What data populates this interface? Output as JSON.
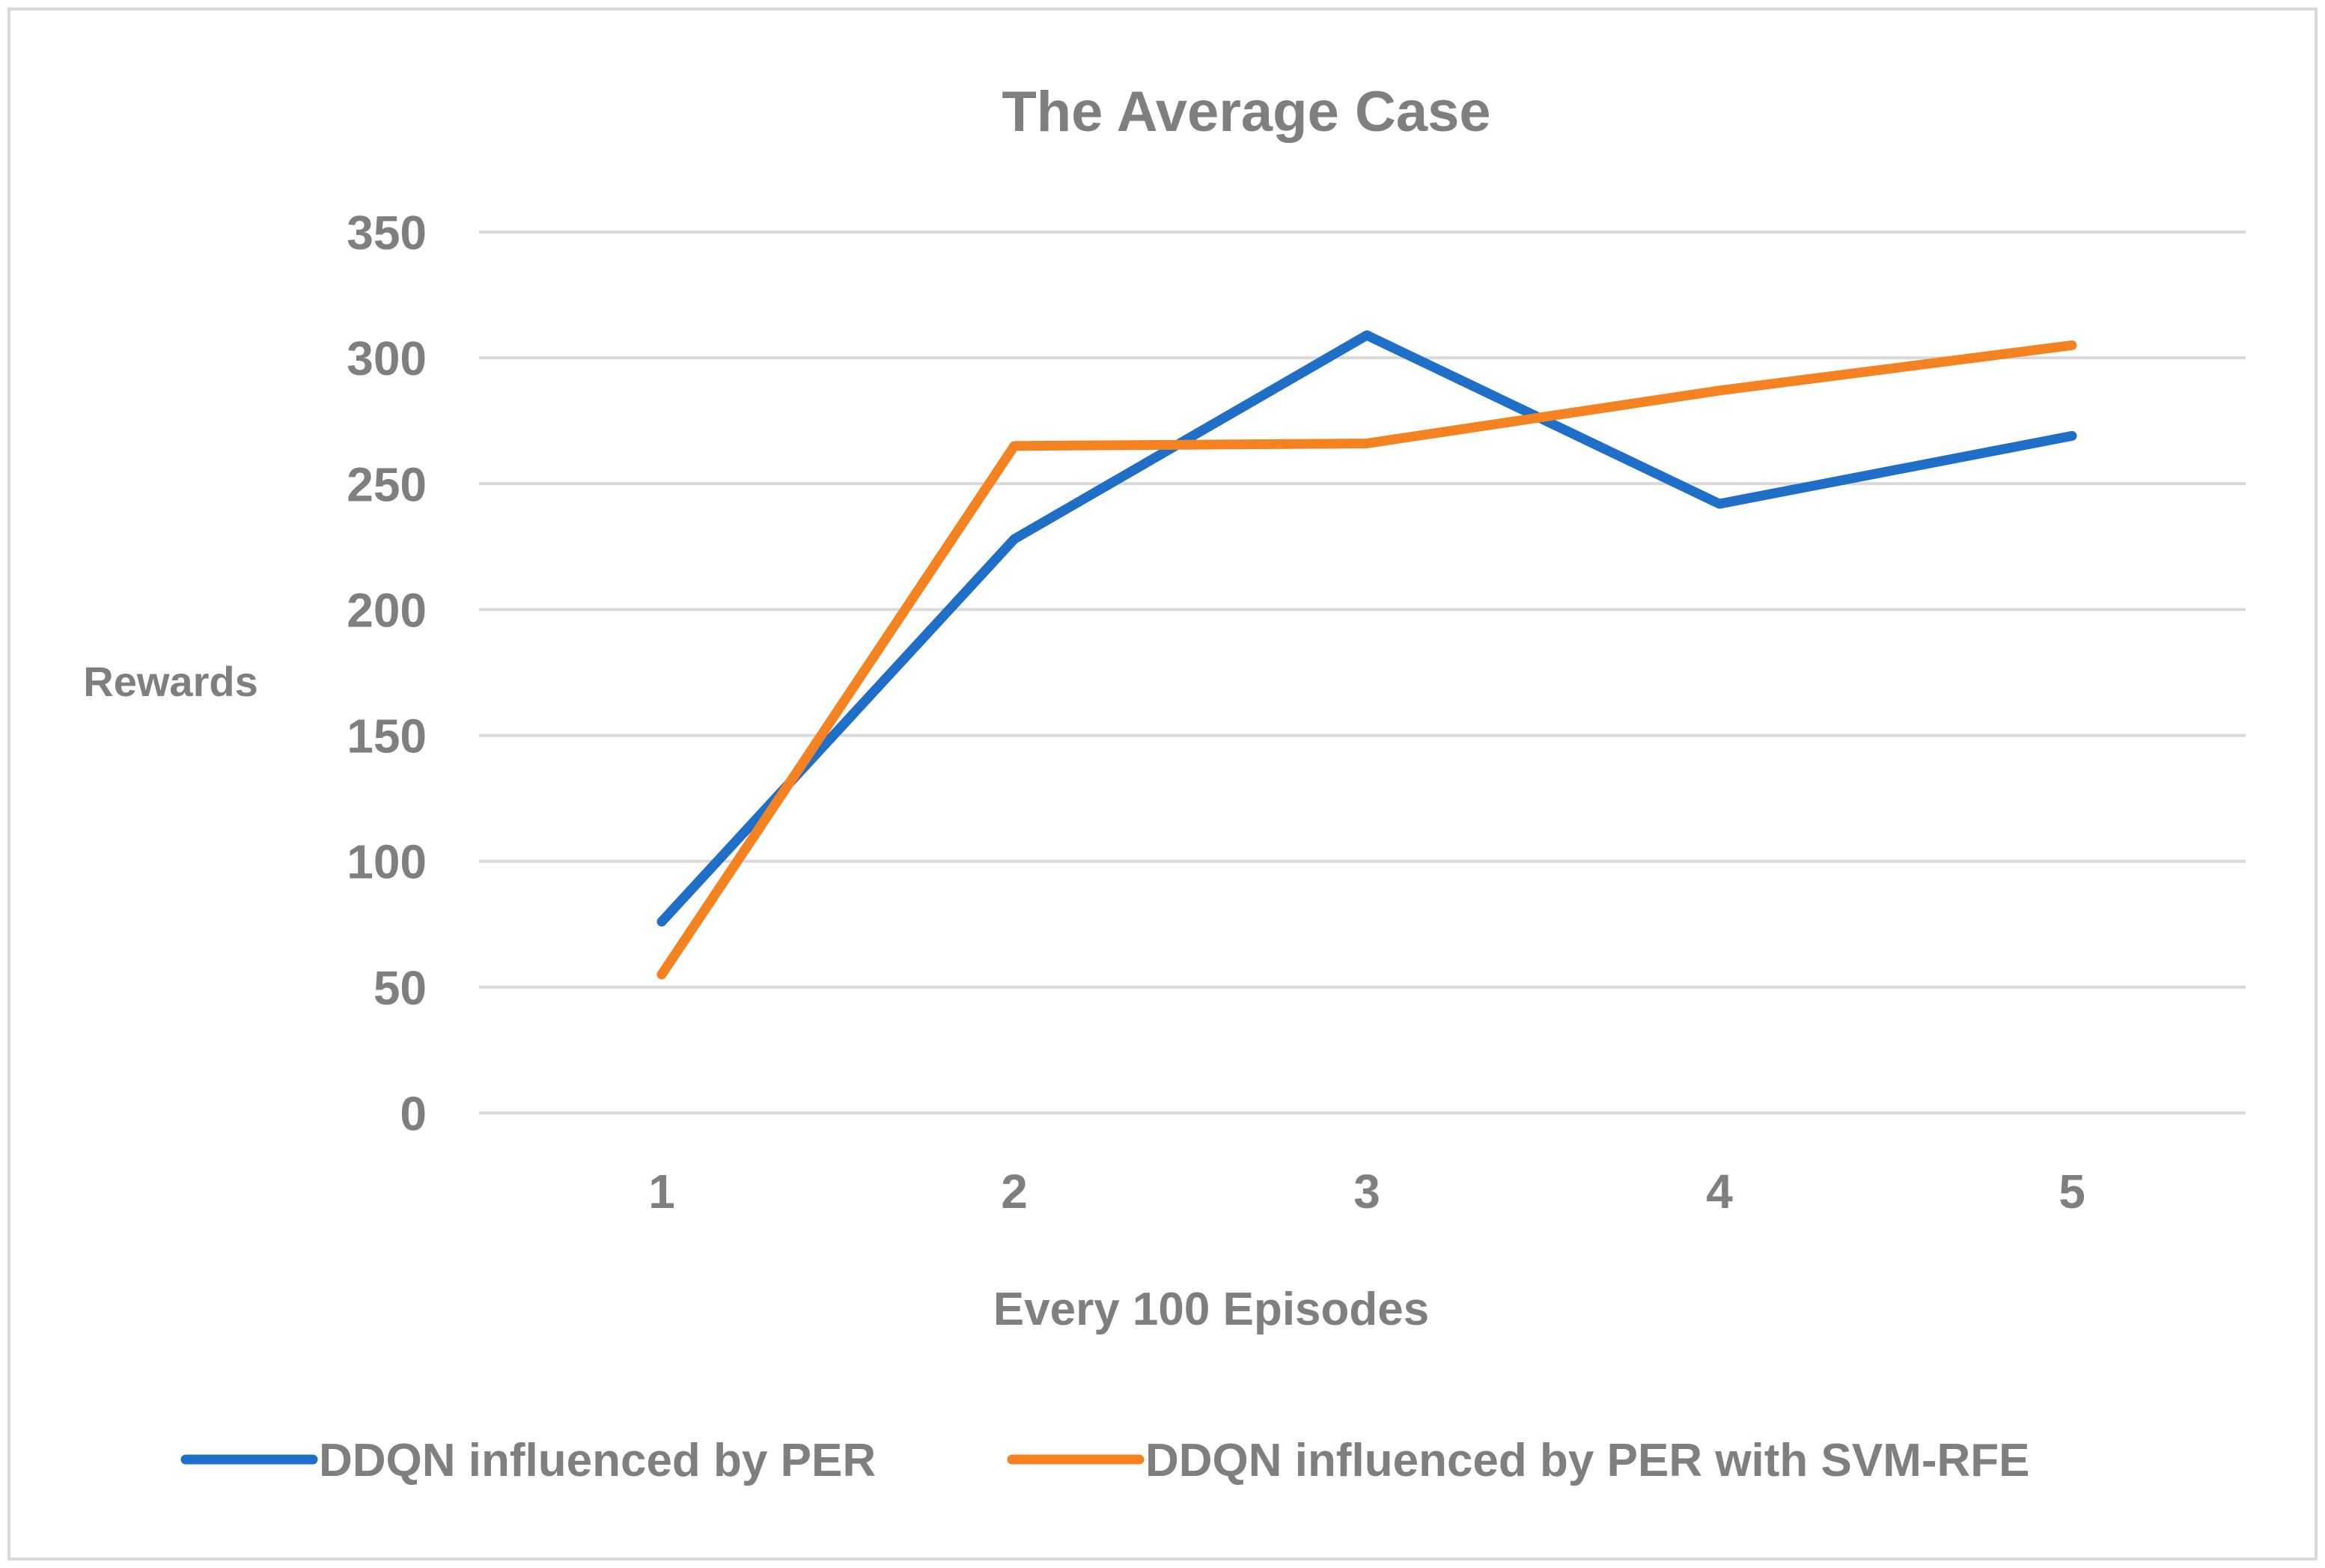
{
  "chart_data": {
    "type": "line",
    "title": "The Average Case",
    "xlabel": "Every 100 Episodes",
    "ylabel": "Rewards",
    "categories": [
      "1",
      "2",
      "3",
      "4",
      "5"
    ],
    "ylim": [
      0,
      350
    ],
    "yticks": [
      "0",
      "50",
      "100",
      "150",
      "200",
      "250",
      "300",
      "350"
    ],
    "grid": true,
    "legend_position": "bottom",
    "series": [
      {
        "name": "DDQN influenced by PER",
        "color": "#1f6fc8",
        "values": [
          76,
          228,
          309,
          242,
          269
        ]
      },
      {
        "name": "DDQN influenced by PER with SVM-RFE",
        "color": "#f58220",
        "values": [
          55,
          265,
          266,
          287,
          305
        ]
      }
    ]
  }
}
